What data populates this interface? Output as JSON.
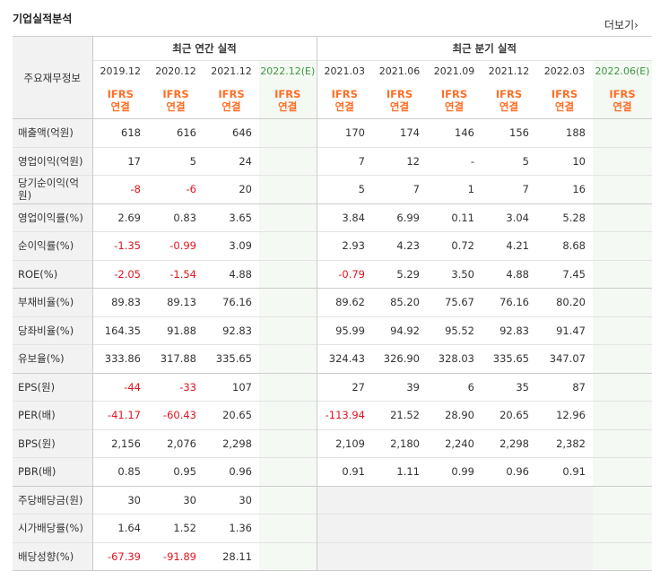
{
  "title": "기업실적분석",
  "more_label": "더보기",
  "row_header": "주요재무정보",
  "annual_label": "최근 연간 실적",
  "quarterly_label": "최근 분기 실적",
  "periods": [
    "2019.12",
    "2020.12",
    "2021.12",
    "2022.12(E)",
    "2021.03",
    "2021.06",
    "2021.09",
    "2021.12",
    "2022.03",
    "2022.06(E)"
  ],
  "ifrs": [
    "IFRS",
    "연결"
  ],
  "rows": [
    {
      "label": "매출액(억원)",
      "values": [
        "618",
        "616",
        "646",
        "",
        "170",
        "174",
        "146",
        "156",
        "188",
        ""
      ]
    },
    {
      "label": "영업이익(억원)",
      "values": [
        "17",
        "5",
        "24",
        "",
        "7",
        "12",
        "-",
        "5",
        "10",
        ""
      ]
    },
    {
      "label": "당기순이익(억원)",
      "values": [
        "-8",
        "-6",
        "20",
        "",
        "5",
        "7",
        "1",
        "7",
        "16",
        ""
      ]
    },
    {
      "label": "영업이익률(%)",
      "values": [
        "2.69",
        "0.83",
        "3.65",
        "",
        "3.84",
        "6.99",
        "0.11",
        "3.04",
        "5.28",
        ""
      ]
    },
    {
      "label": "순이익률(%)",
      "values": [
        "-1.35",
        "-0.99",
        "3.09",
        "",
        "2.93",
        "4.23",
        "0.72",
        "4.21",
        "8.68",
        ""
      ]
    },
    {
      "label": "ROE(%)",
      "values": [
        "-2.05",
        "-1.54",
        "4.88",
        "",
        "-0.79",
        "5.29",
        "3.50",
        "4.88",
        "7.45",
        ""
      ]
    },
    {
      "label": "부채비율(%)",
      "values": [
        "89.83",
        "89.13",
        "76.16",
        "",
        "89.62",
        "85.20",
        "75.67",
        "76.16",
        "80.20",
        ""
      ]
    },
    {
      "label": "당좌비율(%)",
      "values": [
        "164.35",
        "91.88",
        "92.83",
        "",
        "95.99",
        "94.92",
        "95.52",
        "92.83",
        "91.47",
        ""
      ]
    },
    {
      "label": "유보율(%)",
      "values": [
        "333.86",
        "317.88",
        "335.65",
        "",
        "324.43",
        "326.90",
        "328.03",
        "335.65",
        "347.07",
        ""
      ]
    },
    {
      "label": "EPS(원)",
      "values": [
        "-44",
        "-33",
        "107",
        "",
        "27",
        "39",
        "6",
        "35",
        "87",
        ""
      ]
    },
    {
      "label": "PER(배)",
      "values": [
        "-41.17",
        "-60.43",
        "20.65",
        "",
        "-113.94",
        "21.52",
        "28.90",
        "20.65",
        "12.96",
        ""
      ]
    },
    {
      "label": "BPS(원)",
      "values": [
        "2,156",
        "2,076",
        "2,298",
        "",
        "2,109",
        "2,180",
        "2,240",
        "2,298",
        "2,382",
        ""
      ]
    },
    {
      "label": "PBR(배)",
      "values": [
        "0.85",
        "0.95",
        "0.96",
        "",
        "0.91",
        "1.11",
        "0.99",
        "0.96",
        "0.91",
        ""
      ]
    },
    {
      "label": "주당배당금(원)",
      "values": [
        "30",
        "30",
        "30",
        "",
        "",
        "",
        "",
        "",
        "",
        ""
      ]
    },
    {
      "label": "시가배당률(%)",
      "values": [
        "1.64",
        "1.52",
        "1.36",
        "",
        "",
        "",
        "",
        "",
        "",
        ""
      ]
    },
    {
      "label": "배당성향(%)",
      "values": [
        "-67.39",
        "-91.89",
        "28.11",
        "",
        "",
        "",
        "",
        "",
        "",
        ""
      ]
    }
  ],
  "colors": {
    "negative": "#e0141e",
    "ifrs": "#ff6e26",
    "estimate": "#3e9642",
    "estimate_bg": "#f4f9f3"
  }
}
